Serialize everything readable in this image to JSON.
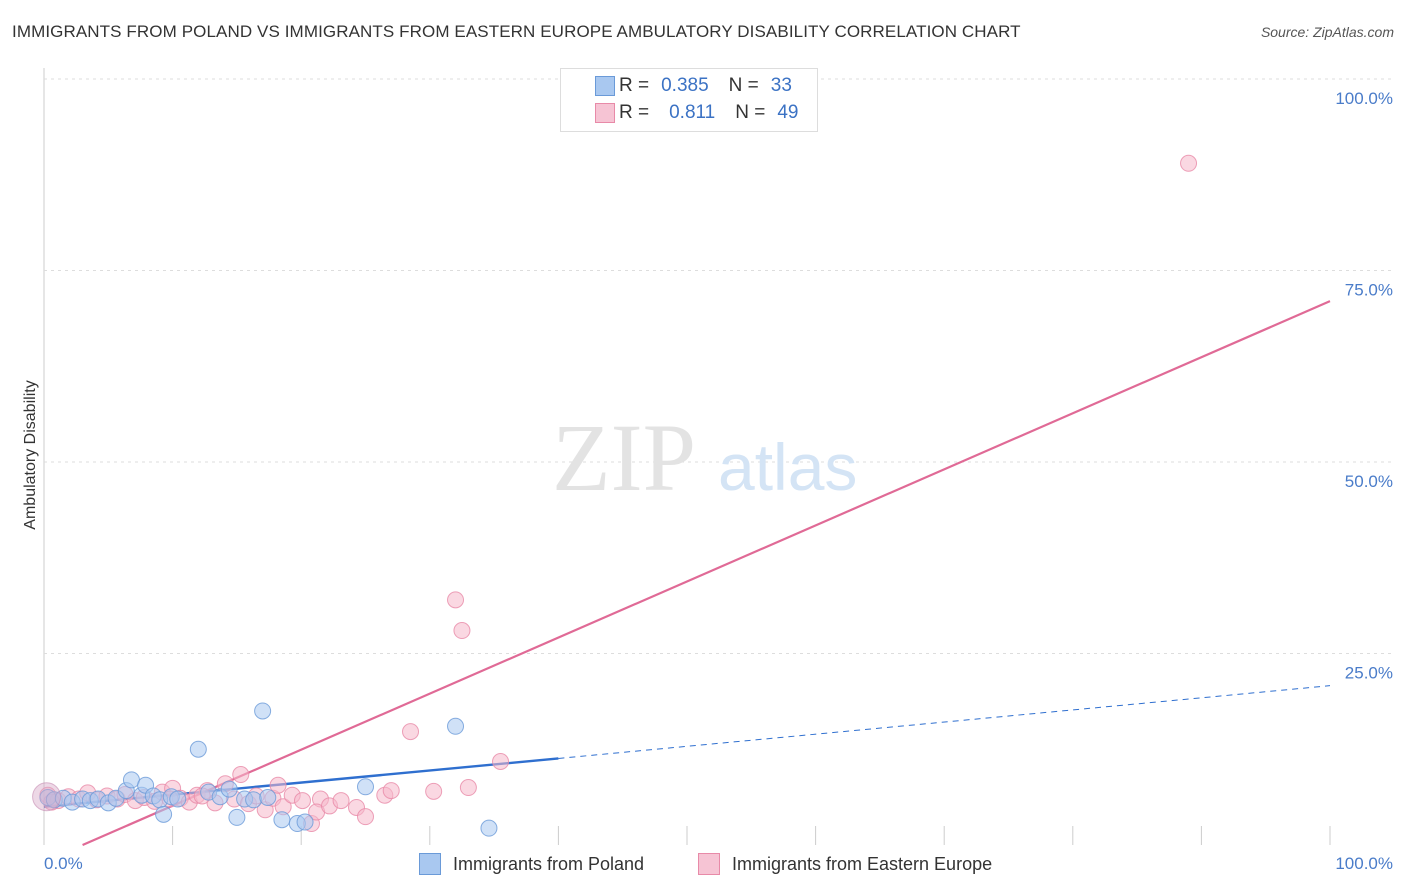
{
  "header": {
    "title": "IMMIGRANTS FROM POLAND VS IMMIGRANTS FROM EASTERN EUROPE AMBULATORY DISABILITY CORRELATION CHART",
    "source": "Source: ZipAtlas.com"
  },
  "watermark": {
    "zip": "ZIP",
    "atlas": "atlas"
  },
  "legend_top": {
    "rows": [
      {
        "r_label": "R =",
        "r_value": "0.385",
        "n_label": "N =",
        "n_value": "33"
      },
      {
        "r_label": "R =",
        "r_value": "0.811",
        "n_label": "N =",
        "n_value": "49"
      }
    ]
  },
  "legend_bottom": {
    "poland": "Immigrants from Poland",
    "eastern_europe": "Immigrants from Eastern Europe"
  },
  "colors": {
    "poland_fill": "#a9c8f0",
    "poland_stroke": "#6a9ad8",
    "poland_line": "#2f6fcf",
    "ee_fill": "#f6b8cb",
    "ee_stroke": "#e88aa8",
    "ee_line": "#e06a96",
    "tick_text": "#4a7cc9",
    "grid": "#dddddd"
  },
  "chart_data": {
    "type": "scatter",
    "title": "IMMIGRANTS FROM POLAND VS IMMIGRANTS FROM EASTERN EUROPE AMBULATORY DISABILITY CORRELATION CHART",
    "xlabel": "",
    "ylabel": "Ambulatory Disability",
    "xlim": [
      0,
      100
    ],
    "ylim": [
      0,
      100
    ],
    "x_tick_labels": [
      "0.0%",
      "100.0%"
    ],
    "y_ticks": [
      25,
      50,
      75,
      100
    ],
    "y_tick_labels": [
      "25.0%",
      "50.0%",
      "75.0%",
      "100.0%"
    ],
    "series": [
      {
        "name": "Immigrants from Poland",
        "r": 0.385,
        "n": 33,
        "points": [
          [
            0.3,
            6.2
          ],
          [
            0.8,
            5.9
          ],
          [
            1.5,
            6.1
          ],
          [
            2.2,
            5.6
          ],
          [
            3.0,
            6.0
          ],
          [
            3.6,
            5.8
          ],
          [
            4.2,
            6.0
          ],
          [
            5.0,
            5.5
          ],
          [
            5.6,
            6.1
          ],
          [
            6.4,
            7.1
          ],
          [
            6.8,
            8.5
          ],
          [
            7.6,
            6.5
          ],
          [
            7.9,
            7.8
          ],
          [
            8.5,
            6.4
          ],
          [
            9.0,
            5.9
          ],
          [
            9.3,
            4.0
          ],
          [
            9.9,
            6.3
          ],
          [
            10.4,
            6.0
          ],
          [
            12.0,
            12.5
          ],
          [
            12.8,
            6.9
          ],
          [
            13.7,
            6.3
          ],
          [
            14.4,
            7.3
          ],
          [
            15.0,
            3.6
          ],
          [
            15.6,
            6.0
          ],
          [
            16.3,
            5.9
          ],
          [
            17.0,
            17.5
          ],
          [
            17.4,
            6.2
          ],
          [
            18.5,
            3.3
          ],
          [
            19.7,
            2.8
          ],
          [
            20.3,
            3.0
          ],
          [
            25.0,
            7.6
          ],
          [
            32.0,
            15.5
          ],
          [
            34.6,
            2.2
          ]
        ],
        "trend": {
          "x_start": 0,
          "y_start": 5.0,
          "x_solid_end": 40,
          "y_solid_end": 11.3,
          "x_end": 100,
          "y_end": 20.8
        }
      },
      {
        "name": "Immigrants from Eastern Europe",
        "r": 0.811,
        "n": 49,
        "points": [
          [
            0.3,
            6.5
          ],
          [
            1.1,
            5.8
          ],
          [
            1.9,
            6.3
          ],
          [
            2.7,
            6.0
          ],
          [
            3.4,
            6.8
          ],
          [
            4.1,
            5.9
          ],
          [
            4.9,
            6.4
          ],
          [
            5.7,
            6.0
          ],
          [
            6.3,
            6.6
          ],
          [
            7.1,
            5.8
          ],
          [
            7.8,
            6.2
          ],
          [
            8.6,
            5.7
          ],
          [
            9.2,
            6.9
          ],
          [
            10.0,
            7.4
          ],
          [
            10.6,
            6.1
          ],
          [
            11.3,
            5.6
          ],
          [
            11.9,
            6.5
          ],
          [
            12.7,
            7.1
          ],
          [
            13.3,
            5.5
          ],
          [
            14.1,
            8.0
          ],
          [
            14.8,
            6.0
          ],
          [
            15.3,
            9.2
          ],
          [
            15.9,
            5.4
          ],
          [
            16.5,
            6.4
          ],
          [
            17.2,
            4.6
          ],
          [
            17.8,
            6.1
          ],
          [
            18.6,
            5.0
          ],
          [
            19.3,
            6.5
          ],
          [
            20.1,
            5.8
          ],
          [
            20.8,
            2.8
          ],
          [
            21.5,
            6.0
          ],
          [
            21.2,
            4.3
          ],
          [
            22.2,
            5.1
          ],
          [
            23.1,
            5.8
          ],
          [
            24.3,
            4.9
          ],
          [
            25.0,
            3.7
          ],
          [
            26.5,
            6.5
          ],
          [
            27.0,
            7.1
          ],
          [
            28.5,
            14.8
          ],
          [
            30.3,
            7.0
          ],
          [
            32.0,
            32.0
          ],
          [
            32.5,
            28.0
          ],
          [
            33.0,
            7.5
          ],
          [
            35.5,
            10.9
          ],
          [
            89.0,
            89.0
          ],
          [
            0.6,
            5.6
          ],
          [
            9.8,
            6.0
          ],
          [
            12.3,
            6.4
          ],
          [
            18.2,
            7.8
          ]
        ],
        "trend": {
          "x_start": 3,
          "y_start": 0.0,
          "x_end": 100,
          "y_end": 71.0
        }
      }
    ]
  }
}
